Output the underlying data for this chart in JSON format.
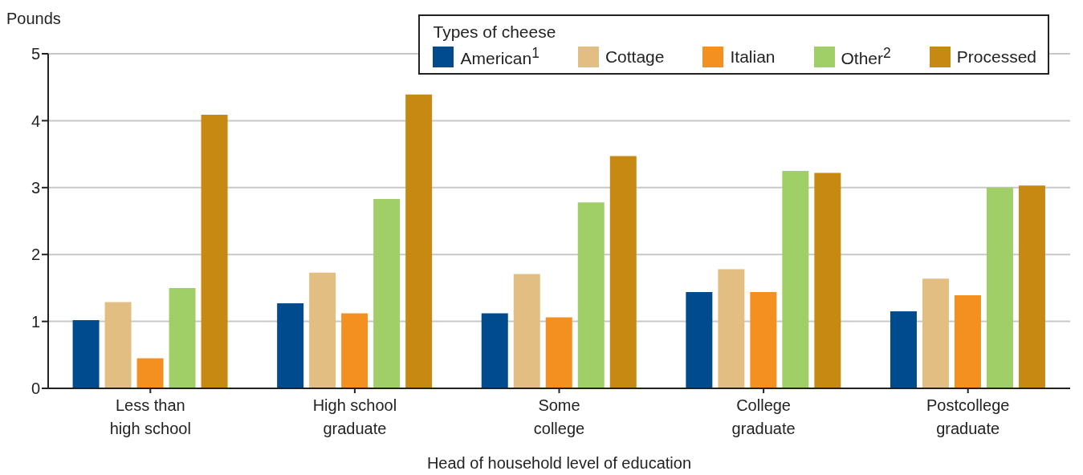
{
  "chart_data": {
    "type": "bar",
    "ylabel": "Pounds",
    "xlabel": "Head of household level of education",
    "legend_title": "Types of cheese",
    "categories": [
      "Less than high school",
      "High school graduate",
      "Some college",
      "College graduate",
      "Postcollege graduate"
    ],
    "series": [
      {
        "name": "American$^{1}$",
        "color": "#004b8d",
        "values": [
          1.02,
          1.27,
          1.12,
          1.44,
          1.15
        ]
      },
      {
        "name": "Cottage",
        "color": "#e3be82",
        "values": [
          1.29,
          1.73,
          1.71,
          1.78,
          1.64
        ]
      },
      {
        "name": "Italian",
        "color": "#f39020",
        "values": [
          0.45,
          1.12,
          1.06,
          1.44,
          1.39
        ]
      },
      {
        "name": "Other$^{2}$",
        "color": "#a0cf67",
        "values": [
          1.5,
          2.83,
          2.78,
          3.25,
          3.0
        ]
      },
      {
        "name": "Processed",
        "color": "#c68a12",
        "values": [
          4.09,
          4.39,
          3.47,
          3.22,
          3.03
        ]
      }
    ],
    "ylim": [
      0,
      5
    ],
    "yticks": [
      0,
      1,
      2,
      3,
      4,
      5
    ],
    "grid": "y",
    "legend": "top right"
  }
}
